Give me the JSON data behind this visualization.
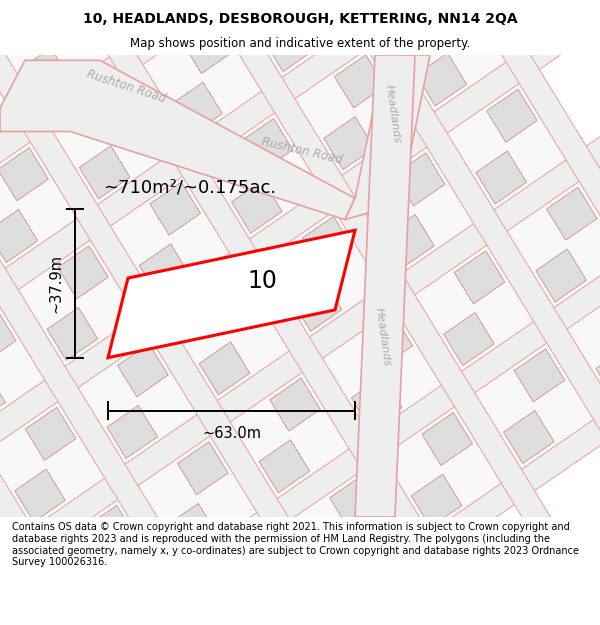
{
  "title_line1": "10, HEADLANDS, DESBOROUGH, KETTERING, NN14 2QA",
  "title_line2": "Map shows position and indicative extent of the property.",
  "footer_text": "Contains OS data © Crown copyright and database right 2021. This information is subject to Crown copyright and database rights 2023 and is reproduced with the permission of HM Land Registry. The polygons (including the associated geometry, namely x, y co-ordinates) are subject to Crown copyright and database rights 2023 Ordnance Survey 100026316.",
  "area_label": "~710m²/~0.175ac.",
  "number_label": "10",
  "dim_width": "~63.0m",
  "dim_height": "~37.9m",
  "bg_color": "#ffffff",
  "map_bg": "#f2f2f2",
  "street_color": "#e8a0a0",
  "road_fill": "#eeeeee",
  "building_fill": "#dedede",
  "building_edge": "#d09090",
  "property_color": "#ff0000",
  "road_label_color": "#aaaaaa",
  "title_fontsize": 10,
  "subtitle_fontsize": 8.5,
  "footer_fontsize": 7,
  "label_fontsize": 13,
  "number_fontsize": 17,
  "dim_fontsize": 10.5
}
